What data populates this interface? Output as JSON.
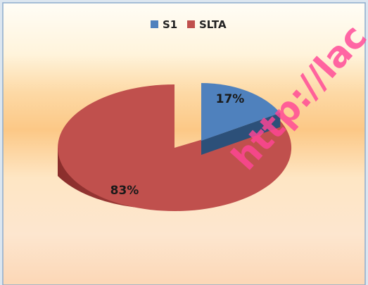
{
  "chart_data": {
    "type": "pie",
    "title": "",
    "legend_position": "top",
    "categories": [
      "S1",
      "SLTA"
    ],
    "values": [
      17,
      83
    ],
    "data_labels": [
      "17%",
      "83%"
    ],
    "colors": {
      "S1": "#4f81bd",
      "SLTA": "#c0504d"
    },
    "exploded": true,
    "three_d": true
  },
  "watermark": {
    "text": "http://lac"
  }
}
